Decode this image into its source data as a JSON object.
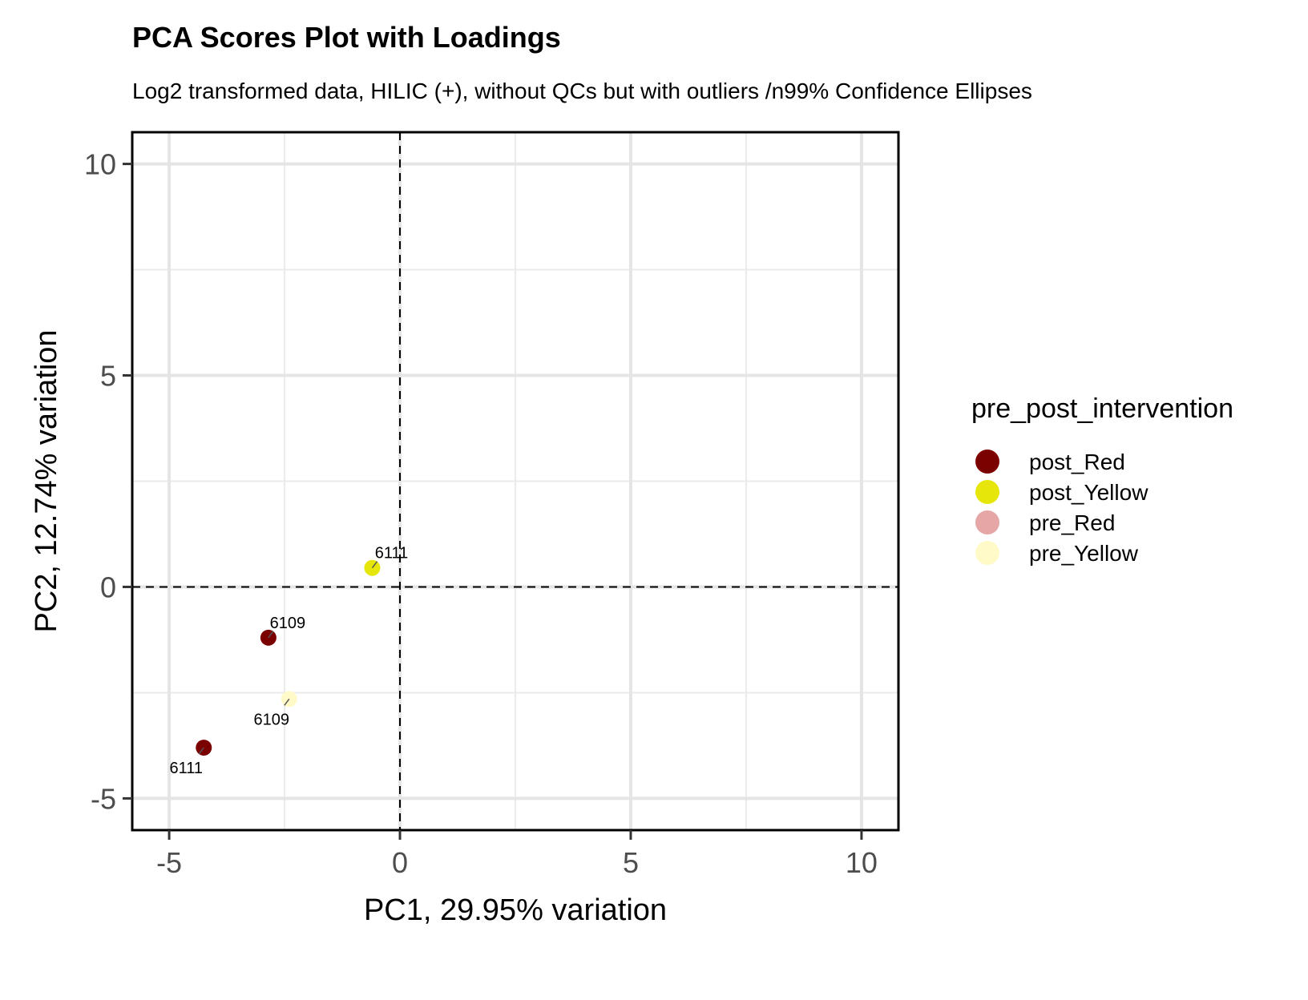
{
  "title": "PCA Scores Plot with Loadings",
  "subtitle": "Log2 transformed data, HILIC (+), without QCs but with outliers /n99% Confidence Ellipses",
  "chart_data": {
    "type": "scatter",
    "xlabel": "PC1, 29.95% variation",
    "ylabel": "PC2, 12.74% variation",
    "xlim": [
      -5.8,
      10.8
    ],
    "ylim": [
      -5.75,
      10.75
    ],
    "x_ticks": [
      -5,
      0,
      5,
      10
    ],
    "y_ticks": [
      -5,
      0,
      5,
      10
    ],
    "x_tick_labels": [
      "-5",
      "0",
      "5",
      "10"
    ],
    "y_tick_labels": [
      "-5",
      "0",
      "5",
      "10"
    ],
    "grid": true,
    "reference_lines": {
      "x": 0,
      "y": 0,
      "style": "dashed"
    },
    "legend": {
      "title": "pre_post_intervention",
      "placement": "right",
      "entries": [
        {
          "name": "post_Red",
          "color": "#7b0000"
        },
        {
          "name": "post_Yellow",
          "color": "#e6e60a"
        },
        {
          "name": "pre_Red",
          "color": "#e6a6a6"
        },
        {
          "name": "pre_Yellow",
          "color": "#fffac8"
        }
      ]
    },
    "points": [
      {
        "group": "post_Yellow",
        "x": -0.6,
        "y": 0.45,
        "label": "6111",
        "label_side": "above"
      },
      {
        "group": "post_Red",
        "x": -2.85,
        "y": -1.2,
        "label": "6109",
        "label_side": "above"
      },
      {
        "group": "pre_Yellow",
        "x": -2.4,
        "y": -2.65,
        "label": "6109",
        "label_side": "below"
      },
      {
        "group": "post_Red",
        "x": -4.25,
        "y": -3.8,
        "label": "6111",
        "label_side": "below"
      }
    ]
  }
}
